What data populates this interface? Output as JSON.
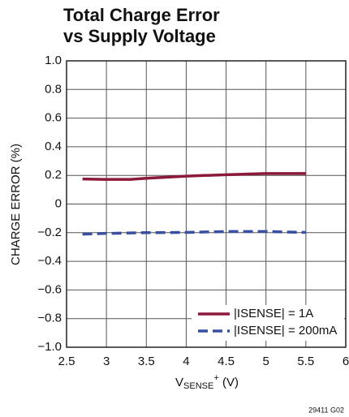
{
  "chart_data": {
    "type": "line",
    "title": [
      "Total Charge Error",
      "vs Supply Voltage"
    ],
    "ylabel": "CHARGE ERROR (%)",
    "xlabel": {
      "main": "V",
      "sub": "SENSE",
      "sup": "+",
      "unit": " (V)"
    },
    "note": "29411 G02",
    "x": [
      2.7,
      3,
      3.3,
      3.5,
      4,
      4.5,
      5,
      5.5
    ],
    "series": [
      {
        "name": "|ISENSE| = 1A",
        "color": "#8b1a3a",
        "dash": false,
        "values": [
          0.175,
          0.172,
          0.172,
          0.18,
          0.195,
          0.205,
          0.213,
          0.213
        ]
      },
      {
        "name": "|ISENSE| = 200mA",
        "color": "#3a4fa0",
        "dash": true,
        "values": [
          -0.21,
          -0.205,
          -0.202,
          -0.2,
          -0.198,
          -0.192,
          -0.192,
          -0.198
        ]
      }
    ],
    "xlim": [
      2.5,
      6
    ],
    "xticks": [
      2.5,
      3,
      3.5,
      4,
      4.5,
      5,
      5.5,
      6
    ],
    "ylim": [
      -1,
      1
    ],
    "yticks": [
      {
        "value": -1,
        "label": "−1.0"
      },
      {
        "value": -0.8,
        "label": "−0.8"
      },
      {
        "value": -0.6,
        "label": "−0.6"
      },
      {
        "value": -0.4,
        "label": "−0.4"
      },
      {
        "value": -0.2,
        "label": "−0.2"
      },
      0,
      0.2,
      0.4,
      0.6,
      0.8,
      {
        "value": 1,
        "label": "1.0"
      }
    ],
    "grid": true,
    "legend": "lower right"
  }
}
